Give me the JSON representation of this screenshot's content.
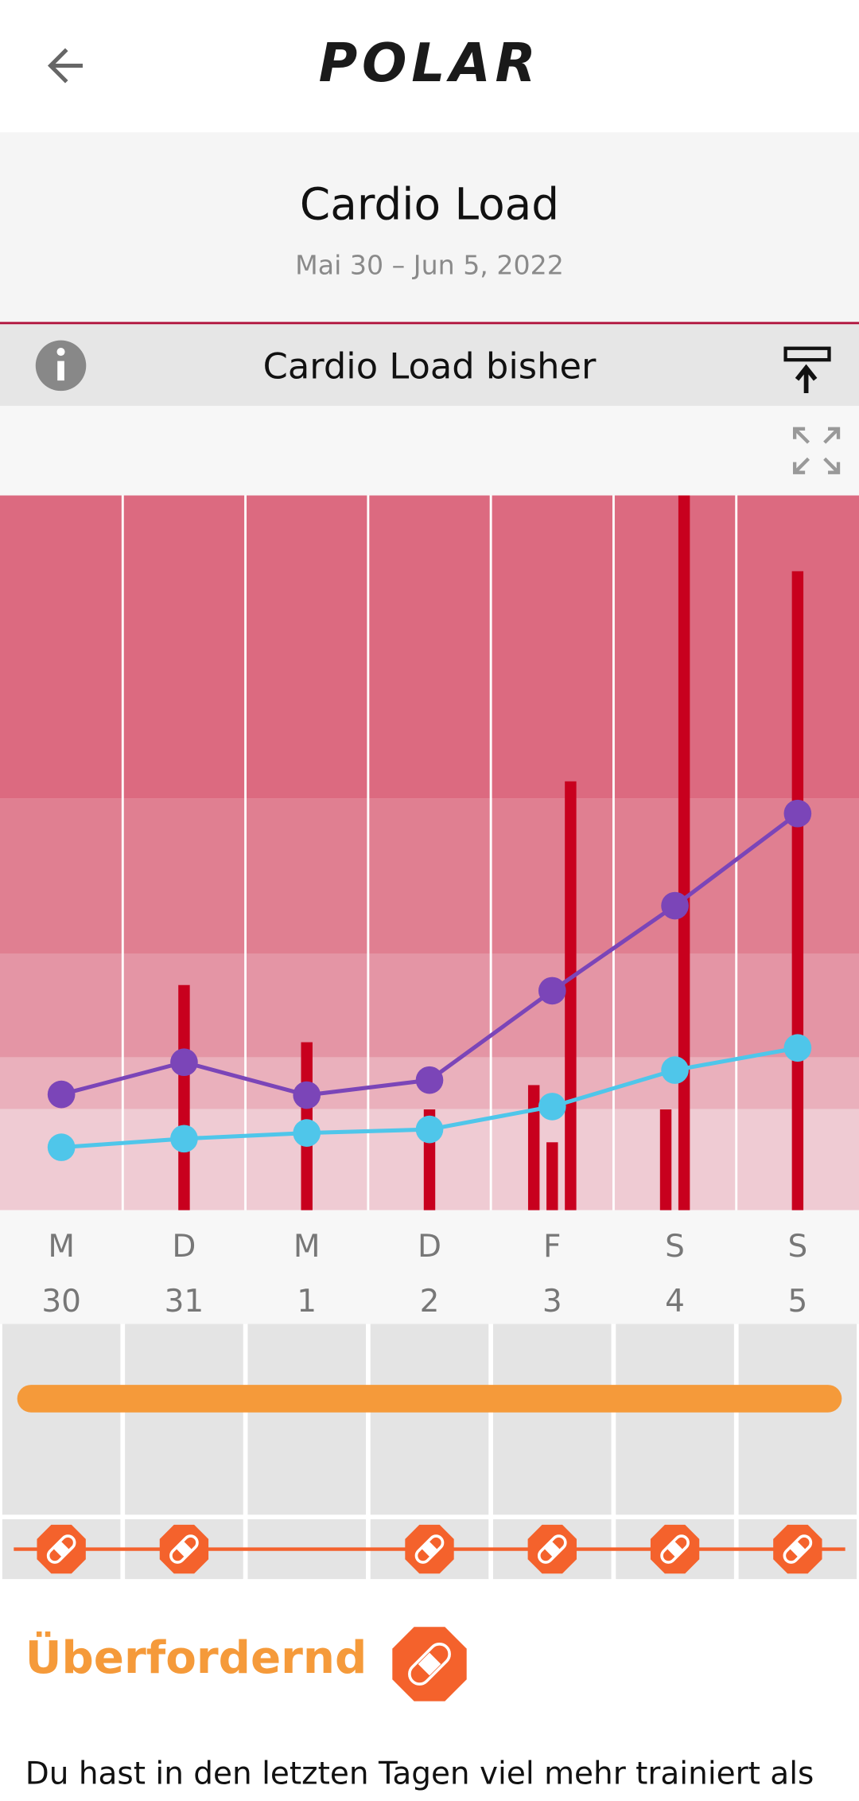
{
  "header": {
    "logo": "POLAR"
  },
  "title": "Cardio Load",
  "date_range": "Mai 30 – Jun 5, 2022",
  "section": "Cardio Load bisher",
  "chart_data": {
    "type": "line",
    "categories": [
      "M",
      "D",
      "M",
      "D",
      "F",
      "S",
      "S"
    ],
    "day_numbers": [
      "30",
      "31",
      "1",
      "2",
      "3",
      "4",
      "5"
    ],
    "ylim": [
      0,
      100
    ],
    "series": [
      {
        "color": "#7b45b8",
        "values": [
          16.2,
          20.7,
          16.1,
          18.2,
          30.7,
          42.6,
          55.5
        ]
      },
      {
        "color": "#4fc6ea",
        "values": [
          8.8,
          10.0,
          10.8,
          11.3,
          14.5,
          19.6,
          22.7
        ]
      }
    ],
    "bars": {
      "color": "#c8001e",
      "values": [
        [],
        [
          31.5
        ],
        [
          23.5
        ],
        [
          14.1
        ],
        [
          17.5,
          9.5,
          60.0
        ],
        [
          14.1,
          100
        ],
        [
          89.4
        ]
      ]
    }
  },
  "status": {
    "days": [
      true,
      true,
      false,
      true,
      true,
      true,
      true
    ],
    "label": "Überfordernd"
  },
  "body": "Du hast in den letzten Tagen viel mehr trainiert als"
}
